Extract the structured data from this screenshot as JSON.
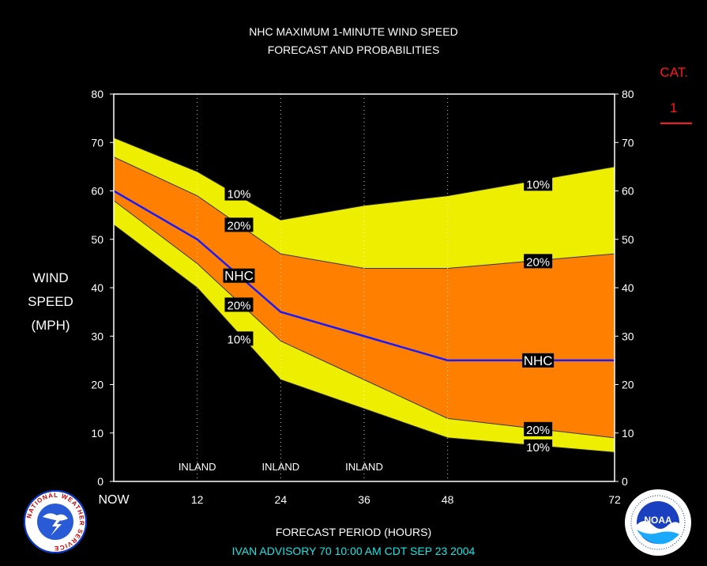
{
  "title": [
    "NHC MAXIMUM 1-MINUTE WIND SPEED",
    "FORECAST AND PROBABILITIES"
  ],
  "category": {
    "label": "CAT.",
    "value": "1",
    "color": "#ff1a1a"
  },
  "ylabel": [
    "WIND",
    "SPEED",
    "(MPH)"
  ],
  "xlabel": "FORECAST PERIOD (HOURS)",
  "advisory": "IVAN   ADVISORY  70 10:00  AM  CDT SEP 23 2004",
  "colors": {
    "outer_band": "#eeee00",
    "inner_band": "#ff8000",
    "nhc_line": "#1a1aff",
    "inland_text": "#ffffff",
    "advisory_text": "#19e6e6"
  },
  "logos": [
    {
      "name": "national-weather-service-logo",
      "text": "NATIONAL WEATHER SERVICE"
    },
    {
      "name": "noaa-logo",
      "text": "NOAA"
    }
  ],
  "chart_data": {
    "type": "area",
    "x_hours": [
      0,
      12,
      24,
      36,
      48,
      72
    ],
    "x_tick_labels": [
      "NOW",
      "12",
      "24",
      "36",
      "48",
      "72"
    ],
    "xlim": [
      0,
      72
    ],
    "ylim": [
      0,
      80
    ],
    "y_ticks": [
      0,
      10,
      20,
      30,
      40,
      50,
      60,
      70,
      80
    ],
    "series": [
      {
        "name": "10%",
        "role": "upper_10",
        "x": [
          0,
          12,
          24,
          36,
          48,
          72
        ],
        "values": [
          71,
          64,
          54,
          57,
          59,
          65
        ]
      },
      {
        "name": "20%",
        "role": "upper_20",
        "x": [
          0,
          12,
          24,
          36,
          48,
          72
        ],
        "values": [
          67,
          59,
          47,
          44,
          44,
          47
        ]
      },
      {
        "name": "NHC",
        "role": "forecast",
        "x": [
          0,
          12,
          24,
          36,
          48,
          72
        ],
        "values": [
          60,
          50,
          35,
          30,
          25,
          25
        ]
      },
      {
        "name": "20%",
        "role": "lower_20",
        "x": [
          0,
          12,
          24,
          36,
          48,
          72
        ],
        "values": [
          58,
          45,
          29,
          21,
          13,
          9
        ]
      },
      {
        "name": "10%",
        "role": "lower_10",
        "x": [
          0,
          12,
          24,
          36,
          48,
          72
        ],
        "values": [
          53,
          40,
          21,
          15,
          9,
          6
        ]
      }
    ],
    "band_labels": [
      {
        "text": "10%",
        "x": 18,
        "y": 59.5
      },
      {
        "text": "20%",
        "x": 18,
        "y": 53.0
      },
      {
        "text": "NHC",
        "x": 18,
        "y": 42.5
      },
      {
        "text": "20%",
        "x": 18,
        "y": 36.5
      },
      {
        "text": "10%",
        "x": 18,
        "y": 29.5
      },
      {
        "text": "10%",
        "x": 61,
        "y": 61.5
      },
      {
        "text": "20%",
        "x": 61,
        "y": 45.5
      },
      {
        "text": "NHC",
        "x": 61,
        "y": 25.0
      },
      {
        "text": "20%",
        "x": 61,
        "y": 10.8
      },
      {
        "text": "10%",
        "x": 61,
        "y": 7.2
      }
    ],
    "inland_periods": [
      12,
      24,
      36
    ],
    "inland_label": "INLAND",
    "grid": "vertical dotted at forecast hours"
  }
}
